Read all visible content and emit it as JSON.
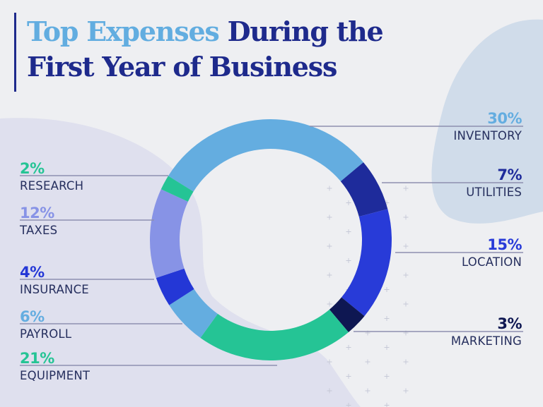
{
  "title": {
    "accent": "Top Expenses",
    "rest_line1": " During the",
    "line2": "First Year of Business"
  },
  "colors": {
    "background": "#eeeff2",
    "title_dark": "#1e2a8c",
    "title_accent": "#62ade0",
    "label_text": "#262f5e",
    "leader_line": "#8d8fb0",
    "blob_right": "#d0dcea",
    "blob_left": "#dfe0ee"
  },
  "labels": {
    "research": {
      "pct": "2%",
      "name": "RESEARCH"
    },
    "taxes": {
      "pct": "12%",
      "name": "TAXES"
    },
    "insurance": {
      "pct": "4%",
      "name": "INSURANCE"
    },
    "payroll": {
      "pct": "6%",
      "name": "PAYROLL"
    },
    "equipment": {
      "pct": "21%",
      "name": "EQUIPMENT"
    },
    "inventory": {
      "pct": "30%",
      "name": "INVENTORY"
    },
    "utilities": {
      "pct": "7%",
      "name": "UTILITIES"
    },
    "location": {
      "pct": "15%",
      "name": "LOCATION"
    },
    "marketing": {
      "pct": "3%",
      "name": "MARKETING"
    }
  },
  "chart_data": {
    "type": "pie",
    "variant": "donut",
    "title": "Top Expenses During the First Year of Business",
    "unit": "%",
    "categories": [
      "Inventory",
      "Utilities",
      "Location",
      "Marketing",
      "Equipment",
      "Payroll",
      "Insurance",
      "Taxes",
      "Research"
    ],
    "values": [
      30,
      7,
      15,
      3,
      21,
      6,
      4,
      12,
      2
    ],
    "colors": [
      "#64ade0",
      "#1e2b9b",
      "#283bd8",
      "#0e1752",
      "#25c495",
      "#64ade0",
      "#2437d6",
      "#8793e6",
      "#25c495"
    ],
    "start_angle_deg": -58,
    "direction": "clockwise",
    "legend": "leader-line labels: left side Research, Taxes, Insurance, Payroll, Equipment; right side Inventory, Utilities, Location, Marketing"
  }
}
